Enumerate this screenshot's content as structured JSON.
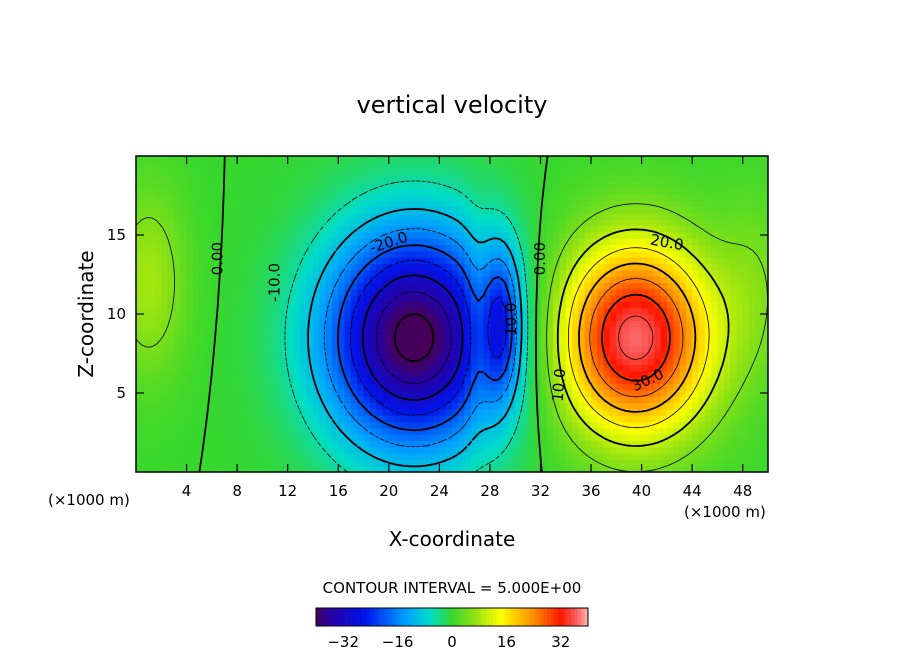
{
  "chart_data": {
    "type": "contour",
    "title": "vertical velocity",
    "xlabel": "X-coordinate",
    "ylabel": "Z-coordinate",
    "x_unit_label": "(×1000 m)",
    "x_unit_label_right": "(×1000 m)",
    "xlim": [
      0,
      50
    ],
    "ylim": [
      0,
      20
    ],
    "x_ticks": [
      4,
      8,
      12,
      16,
      20,
      24,
      28,
      32,
      36,
      40,
      44,
      48
    ],
    "y_ticks": [
      5,
      10,
      15
    ],
    "contour_interval_text": "CONTOUR INTERVAL = 5.000E+00",
    "colorbar": {
      "min": -40,
      "max": 40,
      "ticks": [
        -32,
        -16,
        0,
        16,
        32
      ]
    },
    "extrema": [
      {
        "kind": "minimum",
        "x": 22,
        "z": 8.5,
        "value": -42
      },
      {
        "kind": "maximum",
        "x": 39.5,
        "z": 8.5,
        "value": 37
      },
      {
        "kind": "minimum",
        "x": 29,
        "z": 9.5,
        "value": -14
      }
    ],
    "contour_labels": [
      {
        "text": "0.00",
        "x": 6.5,
        "z": 13.5,
        "angle": -90
      },
      {
        "text": "-10.0",
        "x": 11,
        "z": 12,
        "angle": -90
      },
      {
        "text": "-20.0",
        "x": 20,
        "z": 14.5,
        "angle": -18
      },
      {
        "text": "-10.0",
        "x": 29.7,
        "z": 9.5,
        "angle": -90
      },
      {
        "text": "0.00",
        "x": 32,
        "z": 13.5,
        "angle": -90
      },
      {
        "text": "20.0",
        "x": 42,
        "z": 14.5,
        "angle": 10
      },
      {
        "text": "10.0",
        "x": 33.5,
        "z": 5.5,
        "angle": -85
      },
      {
        "text": "30.0",
        "x": 40.5,
        "z": 5.8,
        "angle": -25
      }
    ]
  }
}
